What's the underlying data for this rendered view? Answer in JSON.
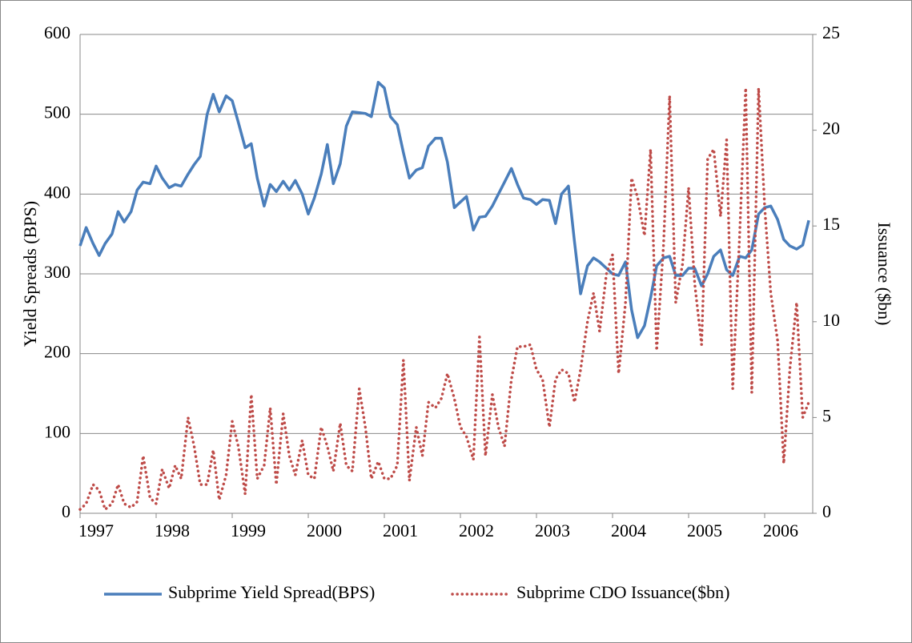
{
  "chart_data": {
    "type": "line",
    "y_label": "Yield Spreads (BPS)",
    "y2_label": "Issuance ($bn)",
    "xlim": [
      1997,
      2006.6
    ],
    "xticks": [
      1997,
      1998,
      1999,
      2000,
      2001,
      2002,
      2003,
      2004,
      2005,
      2006
    ],
    "ylim": [
      0,
      600
    ],
    "yticks": [
      0,
      100,
      200,
      300,
      400,
      500,
      600
    ],
    "y2lim": [
      0,
      25
    ],
    "y2ticks": [
      0,
      5,
      10,
      15,
      20,
      25
    ],
    "grid": true,
    "legend": "bottom",
    "x": [
      1997.0,
      1997.08,
      1997.17,
      1997.25,
      1997.33,
      1997.42,
      1997.5,
      1997.58,
      1997.67,
      1997.75,
      1997.83,
      1997.92,
      1998.0,
      1998.08,
      1998.17,
      1998.25,
      1998.33,
      1998.42,
      1998.5,
      1998.58,
      1998.67,
      1998.75,
      1998.83,
      1998.92,
      1999.0,
      1999.08,
      1999.17,
      1999.25,
      1999.33,
      1999.42,
      1999.5,
      1999.58,
      1999.67,
      1999.75,
      1999.83,
      1999.92,
      2000.0,
      2000.08,
      2000.17,
      2000.25,
      2000.33,
      2000.42,
      2000.5,
      2000.58,
      2000.67,
      2000.75,
      2000.83,
      2000.92,
      2001.0,
      2001.08,
      2001.17,
      2001.25,
      2001.33,
      2001.42,
      2001.5,
      2001.58,
      2001.67,
      2001.75,
      2001.83,
      2001.92,
      2002.0,
      2002.08,
      2002.17,
      2002.25,
      2002.33,
      2002.42,
      2002.5,
      2002.58,
      2002.67,
      2002.75,
      2002.83,
      2002.92,
      2003.0,
      2003.08,
      2003.17,
      2003.25,
      2003.33,
      2003.42,
      2003.5,
      2003.58,
      2003.67,
      2003.75,
      2003.83,
      2003.92,
      2004.0,
      2004.08,
      2004.17,
      2004.25,
      2004.33,
      2004.42,
      2004.5,
      2004.58,
      2004.67,
      2004.75,
      2004.83,
      2004.92,
      2005.0,
      2005.08,
      2005.17,
      2005.25,
      2005.33,
      2005.42,
      2005.5,
      2005.58,
      2005.67,
      2005.75,
      2005.83,
      2005.92,
      2006.0,
      2006.08,
      2006.17,
      2006.25,
      2006.33,
      2006.42,
      2006.5,
      2006.58
    ],
    "series": [
      {
        "name": "Subprime Yield Spread(BPS)",
        "color": "#4a7ebb",
        "style": "solid",
        "values": [
          335,
          358,
          338,
          323,
          338,
          350,
          378,
          365,
          378,
          405,
          415,
          413,
          435,
          420,
          408,
          412,
          410,
          425,
          437,
          447,
          500,
          525,
          503,
          523,
          517,
          490,
          458,
          463,
          420,
          385,
          412,
          403,
          416,
          405,
          417,
          400,
          375,
          395,
          425,
          462,
          413,
          438,
          485,
          503,
          502,
          501,
          497,
          540,
          533,
          497,
          487,
          452,
          420,
          430,
          433,
          460,
          470,
          470,
          440,
          383,
          390,
          397,
          355,
          371,
          372,
          385,
          400,
          415,
          432,
          412,
          395,
          393,
          387,
          393,
          392,
          363,
          400,
          410,
          340,
          275,
          310,
          320,
          315,
          307,
          300,
          298,
          315,
          255,
          220,
          235,
          270,
          310,
          320,
          322,
          298,
          298,
          307,
          307,
          285,
          300,
          322,
          330,
          305,
          298,
          322,
          320,
          330,
          375,
          383,
          385,
          368,
          343,
          335,
          331,
          336,
          367
        ]
      },
      {
        "name": "Subprime CDO Issuance($bn)",
        "color": "#be4b48",
        "style": "dotted",
        "axis": "y2",
        "values": [
          0.2,
          0.5,
          1.5,
          1.2,
          0.2,
          0.5,
          1.5,
          0.5,
          0.3,
          0.6,
          3.0,
          0.8,
          0.5,
          2.3,
          1.3,
          2.5,
          1.8,
          5.0,
          3.5,
          1.5,
          1.5,
          3.3,
          0.7,
          2.0,
          4.8,
          3.5,
          1.0,
          6.2,
          1.8,
          2.5,
          5.5,
          1.5,
          5.2,
          3.0,
          2.0,
          3.8,
          2.0,
          1.8,
          4.5,
          3.5,
          2.2,
          4.7,
          2.5,
          2.2,
          6.5,
          4.5,
          1.8,
          2.7,
          1.8,
          1.8,
          2.5,
          8.0,
          1.7,
          4.5,
          3.0,
          5.8,
          5.5,
          6.0,
          7.3,
          6.0,
          4.5,
          4.0,
          2.8,
          9.2,
          3.0,
          6.2,
          4.5,
          3.5,
          7.0,
          8.7,
          8.7,
          8.8,
          7.5,
          7.0,
          4.5,
          7.0,
          7.5,
          7.3,
          5.8,
          7.5,
          10.0,
          11.5,
          9.5,
          12.5,
          13.5,
          7.3,
          11.0,
          17.5,
          16.5,
          14.5,
          19.0,
          8.5,
          14.0,
          21.8,
          11.0,
          13.0,
          17.0,
          12.0,
          8.8,
          18.5,
          19.0,
          15.5,
          19.5,
          6.5,
          14.5,
          22.2,
          6.3,
          22.2,
          16.0,
          11.5,
          9.0,
          2.6,
          7.5,
          11.0,
          5.0,
          5.8
        ]
      }
    ]
  }
}
